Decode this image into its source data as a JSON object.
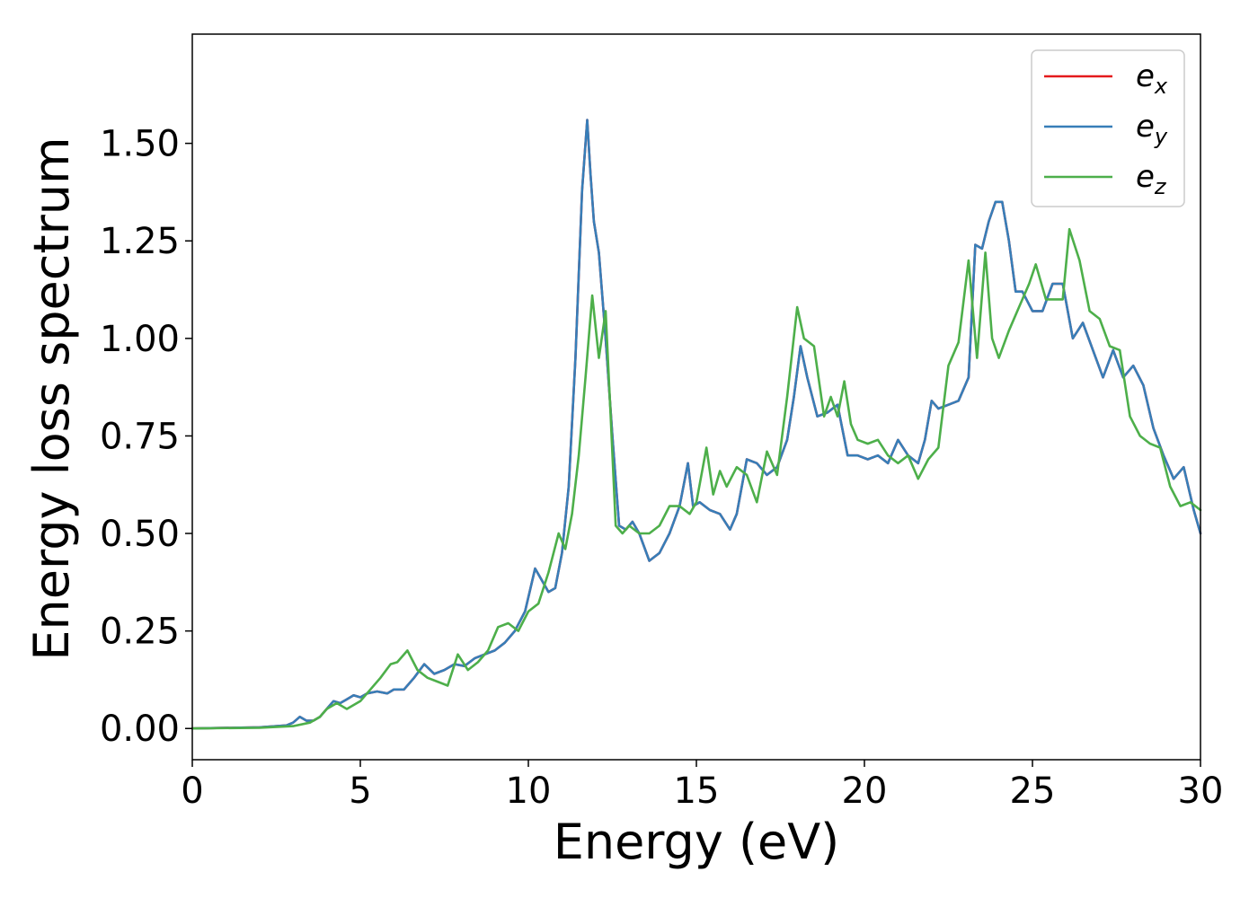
{
  "chart_data": {
    "type": "line",
    "title": "",
    "xlabel": "Energy (eV)",
    "ylabel": "Energy loss spectrum",
    "xlim": [
      0,
      30
    ],
    "ylim": [
      -0.08,
      1.78
    ],
    "xticks": [
      0,
      5,
      10,
      15,
      20,
      25,
      30
    ],
    "xtick_labels": [
      "0",
      "5",
      "10",
      "15",
      "20",
      "25",
      "30"
    ],
    "yticks": [
      0.0,
      0.25,
      0.5,
      0.75,
      1.0,
      1.25,
      1.5
    ],
    "ytick_labels": [
      "0.00",
      "0.25",
      "0.50",
      "0.75",
      "1.00",
      "1.25",
      "1.50"
    ],
    "grid": false,
    "legend_position": "top-right",
    "series": [
      {
        "name": "e",
        "sub": "x",
        "color": "#e41a1c",
        "x": [
          0,
          2,
          2.8,
          3.0,
          3.2,
          3.4,
          3.6,
          3.8,
          4.0,
          4.2,
          4.4,
          4.6,
          4.8,
          5.0,
          5.2,
          5.5,
          5.8,
          6.0,
          6.3,
          6.6,
          6.9,
          7.2,
          7.5,
          7.8,
          8.1,
          8.4,
          8.7,
          9.0,
          9.3,
          9.6,
          9.9,
          10.2,
          10.4,
          10.6,
          10.8,
          11.0,
          11.2,
          11.4,
          11.6,
          11.75,
          11.85,
          11.95,
          12.1,
          12.3,
          12.5,
          12.7,
          12.9,
          13.1,
          13.3,
          13.6,
          13.9,
          14.2,
          14.5,
          14.75,
          14.9,
          15.1,
          15.4,
          15.7,
          16.0,
          16.2,
          16.5,
          16.8,
          17.1,
          17.4,
          17.7,
          17.9,
          18.1,
          18.3,
          18.6,
          18.9,
          19.2,
          19.5,
          19.8,
          20.1,
          20.4,
          20.7,
          21.0,
          21.3,
          21.6,
          21.8,
          22.0,
          22.2,
          22.5,
          22.8,
          23.1,
          23.3,
          23.5,
          23.7,
          23.9,
          24.1,
          24.3,
          24.5,
          24.7,
          25.0,
          25.3,
          25.6,
          25.9,
          26.2,
          26.5,
          26.8,
          27.1,
          27.4,
          27.7,
          28.0,
          28.3,
          28.6,
          28.9,
          29.2,
          29.5,
          29.8,
          30
        ],
        "y": [
          0,
          0.003,
          0.008,
          0.015,
          0.03,
          0.02,
          0.02,
          0.03,
          0.05,
          0.07,
          0.065,
          0.075,
          0.085,
          0.08,
          0.09,
          0.095,
          0.09,
          0.1,
          0.1,
          0.13,
          0.165,
          0.14,
          0.15,
          0.165,
          0.16,
          0.18,
          0.19,
          0.2,
          0.22,
          0.25,
          0.3,
          0.41,
          0.38,
          0.35,
          0.36,
          0.45,
          0.62,
          0.95,
          1.38,
          1.56,
          1.42,
          1.3,
          1.22,
          1.0,
          0.75,
          0.52,
          0.51,
          0.53,
          0.5,
          0.43,
          0.45,
          0.5,
          0.57,
          0.68,
          0.57,
          0.58,
          0.56,
          0.55,
          0.51,
          0.55,
          0.69,
          0.68,
          0.65,
          0.67,
          0.74,
          0.85,
          0.98,
          0.9,
          0.8,
          0.81,
          0.83,
          0.7,
          0.7,
          0.69,
          0.7,
          0.68,
          0.74,
          0.7,
          0.68,
          0.74,
          0.84,
          0.82,
          0.83,
          0.84,
          0.9,
          1.24,
          1.23,
          1.3,
          1.35,
          1.35,
          1.25,
          1.12,
          1.12,
          1.07,
          1.07,
          1.14,
          1.14,
          1.0,
          1.04,
          0.97,
          0.9,
          0.97,
          0.9,
          0.93,
          0.88,
          0.77,
          0.7,
          0.64,
          0.67,
          0.56,
          0.5
        ]
      },
      {
        "name": "e",
        "sub": "y",
        "color": "#377eb8",
        "x": [
          0,
          2,
          2.8,
          3.0,
          3.2,
          3.4,
          3.6,
          3.8,
          4.0,
          4.2,
          4.4,
          4.6,
          4.8,
          5.0,
          5.2,
          5.5,
          5.8,
          6.0,
          6.3,
          6.6,
          6.9,
          7.2,
          7.5,
          7.8,
          8.1,
          8.4,
          8.7,
          9.0,
          9.3,
          9.6,
          9.9,
          10.2,
          10.4,
          10.6,
          10.8,
          11.0,
          11.2,
          11.4,
          11.6,
          11.75,
          11.85,
          11.95,
          12.1,
          12.3,
          12.5,
          12.7,
          12.9,
          13.1,
          13.3,
          13.6,
          13.9,
          14.2,
          14.5,
          14.75,
          14.9,
          15.1,
          15.4,
          15.7,
          16.0,
          16.2,
          16.5,
          16.8,
          17.1,
          17.4,
          17.7,
          17.9,
          18.1,
          18.3,
          18.6,
          18.9,
          19.2,
          19.5,
          19.8,
          20.1,
          20.4,
          20.7,
          21.0,
          21.3,
          21.6,
          21.8,
          22.0,
          22.2,
          22.5,
          22.8,
          23.1,
          23.3,
          23.5,
          23.7,
          23.9,
          24.1,
          24.3,
          24.5,
          24.7,
          25.0,
          25.3,
          25.6,
          25.9,
          26.2,
          26.5,
          26.8,
          27.1,
          27.4,
          27.7,
          28.0,
          28.3,
          28.6,
          28.9,
          29.2,
          29.5,
          29.8,
          30
        ],
        "y": [
          0,
          0.003,
          0.008,
          0.015,
          0.03,
          0.02,
          0.02,
          0.03,
          0.05,
          0.07,
          0.065,
          0.075,
          0.085,
          0.08,
          0.09,
          0.095,
          0.09,
          0.1,
          0.1,
          0.13,
          0.165,
          0.14,
          0.15,
          0.165,
          0.16,
          0.18,
          0.19,
          0.2,
          0.22,
          0.25,
          0.3,
          0.41,
          0.38,
          0.35,
          0.36,
          0.45,
          0.62,
          0.95,
          1.38,
          1.56,
          1.42,
          1.3,
          1.22,
          1.0,
          0.75,
          0.52,
          0.51,
          0.53,
          0.5,
          0.43,
          0.45,
          0.5,
          0.57,
          0.68,
          0.57,
          0.58,
          0.56,
          0.55,
          0.51,
          0.55,
          0.69,
          0.68,
          0.65,
          0.67,
          0.74,
          0.85,
          0.98,
          0.9,
          0.8,
          0.81,
          0.83,
          0.7,
          0.7,
          0.69,
          0.7,
          0.68,
          0.74,
          0.7,
          0.68,
          0.74,
          0.84,
          0.82,
          0.83,
          0.84,
          0.9,
          1.24,
          1.23,
          1.3,
          1.35,
          1.35,
          1.25,
          1.12,
          1.12,
          1.07,
          1.07,
          1.14,
          1.14,
          1.0,
          1.04,
          0.97,
          0.9,
          0.97,
          0.9,
          0.93,
          0.88,
          0.77,
          0.7,
          0.64,
          0.67,
          0.56,
          0.5
        ]
      },
      {
        "name": "e",
        "sub": "z",
        "color": "#4daf4a",
        "x": [
          0,
          2,
          3.0,
          3.5,
          3.8,
          4.0,
          4.3,
          4.6,
          5.0,
          5.3,
          5.6,
          5.9,
          6.1,
          6.4,
          6.7,
          7.0,
          7.3,
          7.6,
          7.9,
          8.2,
          8.5,
          8.8,
          9.1,
          9.4,
          9.7,
          10.0,
          10.3,
          10.6,
          10.9,
          11.1,
          11.3,
          11.5,
          11.7,
          11.9,
          12.1,
          12.3,
          12.45,
          12.6,
          12.8,
          13.0,
          13.3,
          13.6,
          13.9,
          14.2,
          14.5,
          14.8,
          15.0,
          15.3,
          15.5,
          15.7,
          15.9,
          16.2,
          16.5,
          16.8,
          17.1,
          17.4,
          17.7,
          18.0,
          18.2,
          18.5,
          18.8,
          19.0,
          19.2,
          19.4,
          19.6,
          19.8,
          20.1,
          20.4,
          20.7,
          21.0,
          21.3,
          21.6,
          21.9,
          22.2,
          22.5,
          22.8,
          23.1,
          23.35,
          23.6,
          23.8,
          24.0,
          24.3,
          24.6,
          24.9,
          25.1,
          25.4,
          25.7,
          25.9,
          26.1,
          26.4,
          26.7,
          27.0,
          27.3,
          27.6,
          27.9,
          28.2,
          28.5,
          28.8,
          29.1,
          29.4,
          29.7,
          30
        ],
        "y": [
          0,
          0.002,
          0.006,
          0.015,
          0.03,
          0.05,
          0.065,
          0.05,
          0.07,
          0.1,
          0.13,
          0.165,
          0.17,
          0.2,
          0.15,
          0.13,
          0.12,
          0.11,
          0.19,
          0.15,
          0.17,
          0.2,
          0.26,
          0.27,
          0.25,
          0.3,
          0.32,
          0.4,
          0.5,
          0.46,
          0.55,
          0.7,
          0.9,
          1.11,
          0.95,
          1.07,
          0.8,
          0.52,
          0.5,
          0.52,
          0.5,
          0.5,
          0.52,
          0.57,
          0.57,
          0.55,
          0.58,
          0.72,
          0.6,
          0.66,
          0.62,
          0.67,
          0.65,
          0.58,
          0.71,
          0.65,
          0.85,
          1.08,
          1.0,
          0.98,
          0.8,
          0.85,
          0.8,
          0.89,
          0.78,
          0.74,
          0.73,
          0.74,
          0.7,
          0.68,
          0.7,
          0.64,
          0.69,
          0.72,
          0.93,
          0.99,
          1.2,
          0.95,
          1.22,
          1.0,
          0.95,
          1.02,
          1.08,
          1.14,
          1.19,
          1.1,
          1.1,
          1.1,
          1.28,
          1.2,
          1.07,
          1.05,
          0.98,
          0.97,
          0.8,
          0.75,
          0.73,
          0.72,
          0.62,
          0.57,
          0.58,
          0.56
        ]
      }
    ]
  }
}
